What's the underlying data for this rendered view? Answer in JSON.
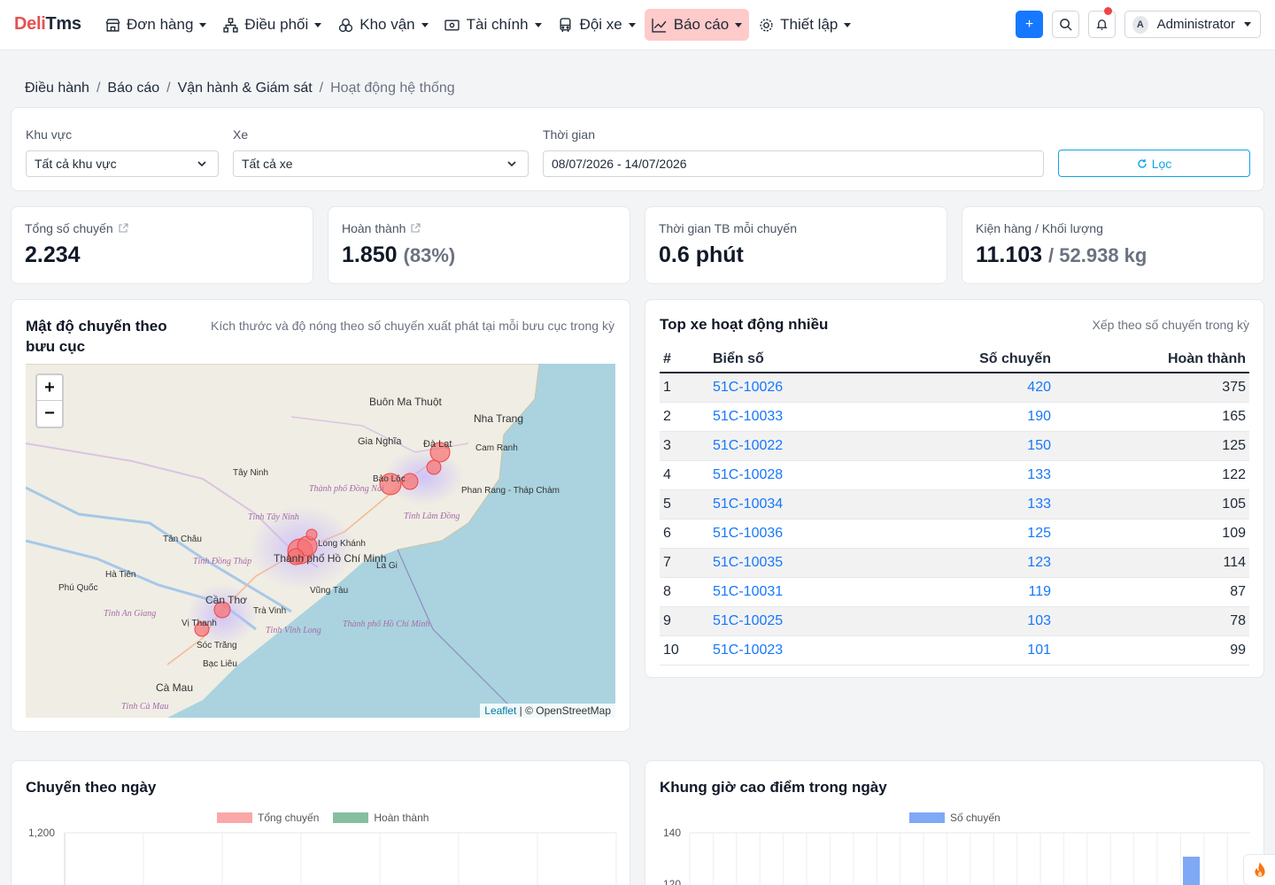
{
  "brand": {
    "deli": "Deli",
    "tms": "Tms"
  },
  "nav": [
    {
      "label": "Đơn hàng",
      "icon": "store-icon"
    },
    {
      "label": "Điều phối",
      "icon": "sitemap-icon"
    },
    {
      "label": "Kho vận",
      "icon": "boxes-icon"
    },
    {
      "label": "Tài chính",
      "icon": "wallet-icon"
    },
    {
      "label": "Đội xe",
      "icon": "bus-icon"
    },
    {
      "label": "Báo cáo",
      "icon": "chart-line-icon",
      "active": true
    },
    {
      "label": "Thiết lập",
      "icon": "gear-icon"
    }
  ],
  "header": {
    "plus": "+",
    "user_initial": "A",
    "user_name": "Administrator"
  },
  "breadcrumb": [
    "Điều hành",
    "Báo cáo",
    "Vận hành & Giám sát",
    "Hoạt động hệ thống"
  ],
  "filters": {
    "region_label": "Khu vực",
    "region_value": "Tất cả khu vực",
    "vehicle_label": "Xe",
    "vehicle_value": "Tất cả xe",
    "time_label": "Thời gian",
    "time_value": "08/07/2026 - 14/07/2026",
    "filter_button": "Lọc"
  },
  "kpis": [
    {
      "label": "Tổng số chuyến",
      "value": "2.234",
      "extra": ""
    },
    {
      "label": "Hoàn thành",
      "value": "1.850",
      "extra": "(83%)"
    },
    {
      "label": "Thời gian TB mỗi chuyến",
      "value": "0.6 phút",
      "extra": ""
    },
    {
      "label": "Kiện hàng / Khối lượng",
      "value": "11.103",
      "extra": "/ 52.938 kg"
    }
  ],
  "map_card": {
    "title": "Mật độ chuyến theo bưu cục",
    "subtitle": "Kích thước và độ nóng theo số chuyến xuất phát tại mỗi bưu cục trong kỳ",
    "attribution_leaflet": "Leaflet",
    "attribution_osm": "| © OpenStreetMap",
    "places": [
      "Buôn Ma Thuột",
      "Nha Trang",
      "Gia Nghĩa",
      "Đà Lạt",
      "Cam Ranh",
      "Bảo Lộc",
      "Phan Rang - Tháp Chàm",
      "Tây Ninh",
      "Long Khánh",
      "Thành phố Hồ Chí Minh",
      "La Gi",
      "Vũng Tàu",
      "Cần Thơ",
      "Trà Vinh",
      "Vị Thanh",
      "Sóc Trăng",
      "Bạc Liêu",
      "Cà Mau",
      "Phú Quốc",
      "Hà Tiên",
      "Tân Châu"
    ],
    "provinces": [
      "Tỉnh Lâm Đồng",
      "Thành phố Đồng Nai",
      "Tỉnh Tây Ninh",
      "Tỉnh Đồng Tháp",
      "Tỉnh An Giang",
      "Tỉnh Vĩnh Long",
      "Thành phố Hồ Chí Minh",
      "Tỉnh Cà Mau"
    ]
  },
  "top_card": {
    "title": "Top xe hoạt động nhiều",
    "subtitle": "Xếp theo số chuyến trong kỳ",
    "columns": [
      "#",
      "Biển số",
      "Số chuyến",
      "Hoàn thành"
    ],
    "rows": [
      [
        "1",
        "51C-10026",
        "420",
        "375"
      ],
      [
        "2",
        "51C-10033",
        "190",
        "165"
      ],
      [
        "3",
        "51C-10022",
        "150",
        "125"
      ],
      [
        "4",
        "51C-10028",
        "133",
        "122"
      ],
      [
        "5",
        "51C-10034",
        "133",
        "105"
      ],
      [
        "6",
        "51C-10036",
        "125",
        "109"
      ],
      [
        "7",
        "51C-10035",
        "123",
        "114"
      ],
      [
        "8",
        "51C-10031",
        "119",
        "87"
      ],
      [
        "9",
        "51C-10025",
        "103",
        "78"
      ],
      [
        "10",
        "51C-10023",
        "101",
        "99"
      ]
    ]
  },
  "chart_data": [
    {
      "type": "bar",
      "title": "Chuyến theo ngày",
      "series": [
        {
          "name": "Tổng chuyến",
          "color": "#f9a8a8",
          "values": []
        },
        {
          "name": "Hoàn thành",
          "color": "#86bf9f",
          "values": []
        }
      ],
      "y_ticks": [
        "1,200"
      ]
    },
    {
      "type": "bar",
      "title": "Khung giờ cao điểm trong ngày",
      "series": [
        {
          "name": "Số chuyến",
          "color": "#7fa8f5",
          "values": []
        }
      ],
      "y_ticks": [
        "140",
        "120"
      ]
    }
  ],
  "colors": {
    "accent": "#1677ff",
    "brand": "#e8504f",
    "nav_active": "#fecaca",
    "filter": "#0ea5e9"
  }
}
